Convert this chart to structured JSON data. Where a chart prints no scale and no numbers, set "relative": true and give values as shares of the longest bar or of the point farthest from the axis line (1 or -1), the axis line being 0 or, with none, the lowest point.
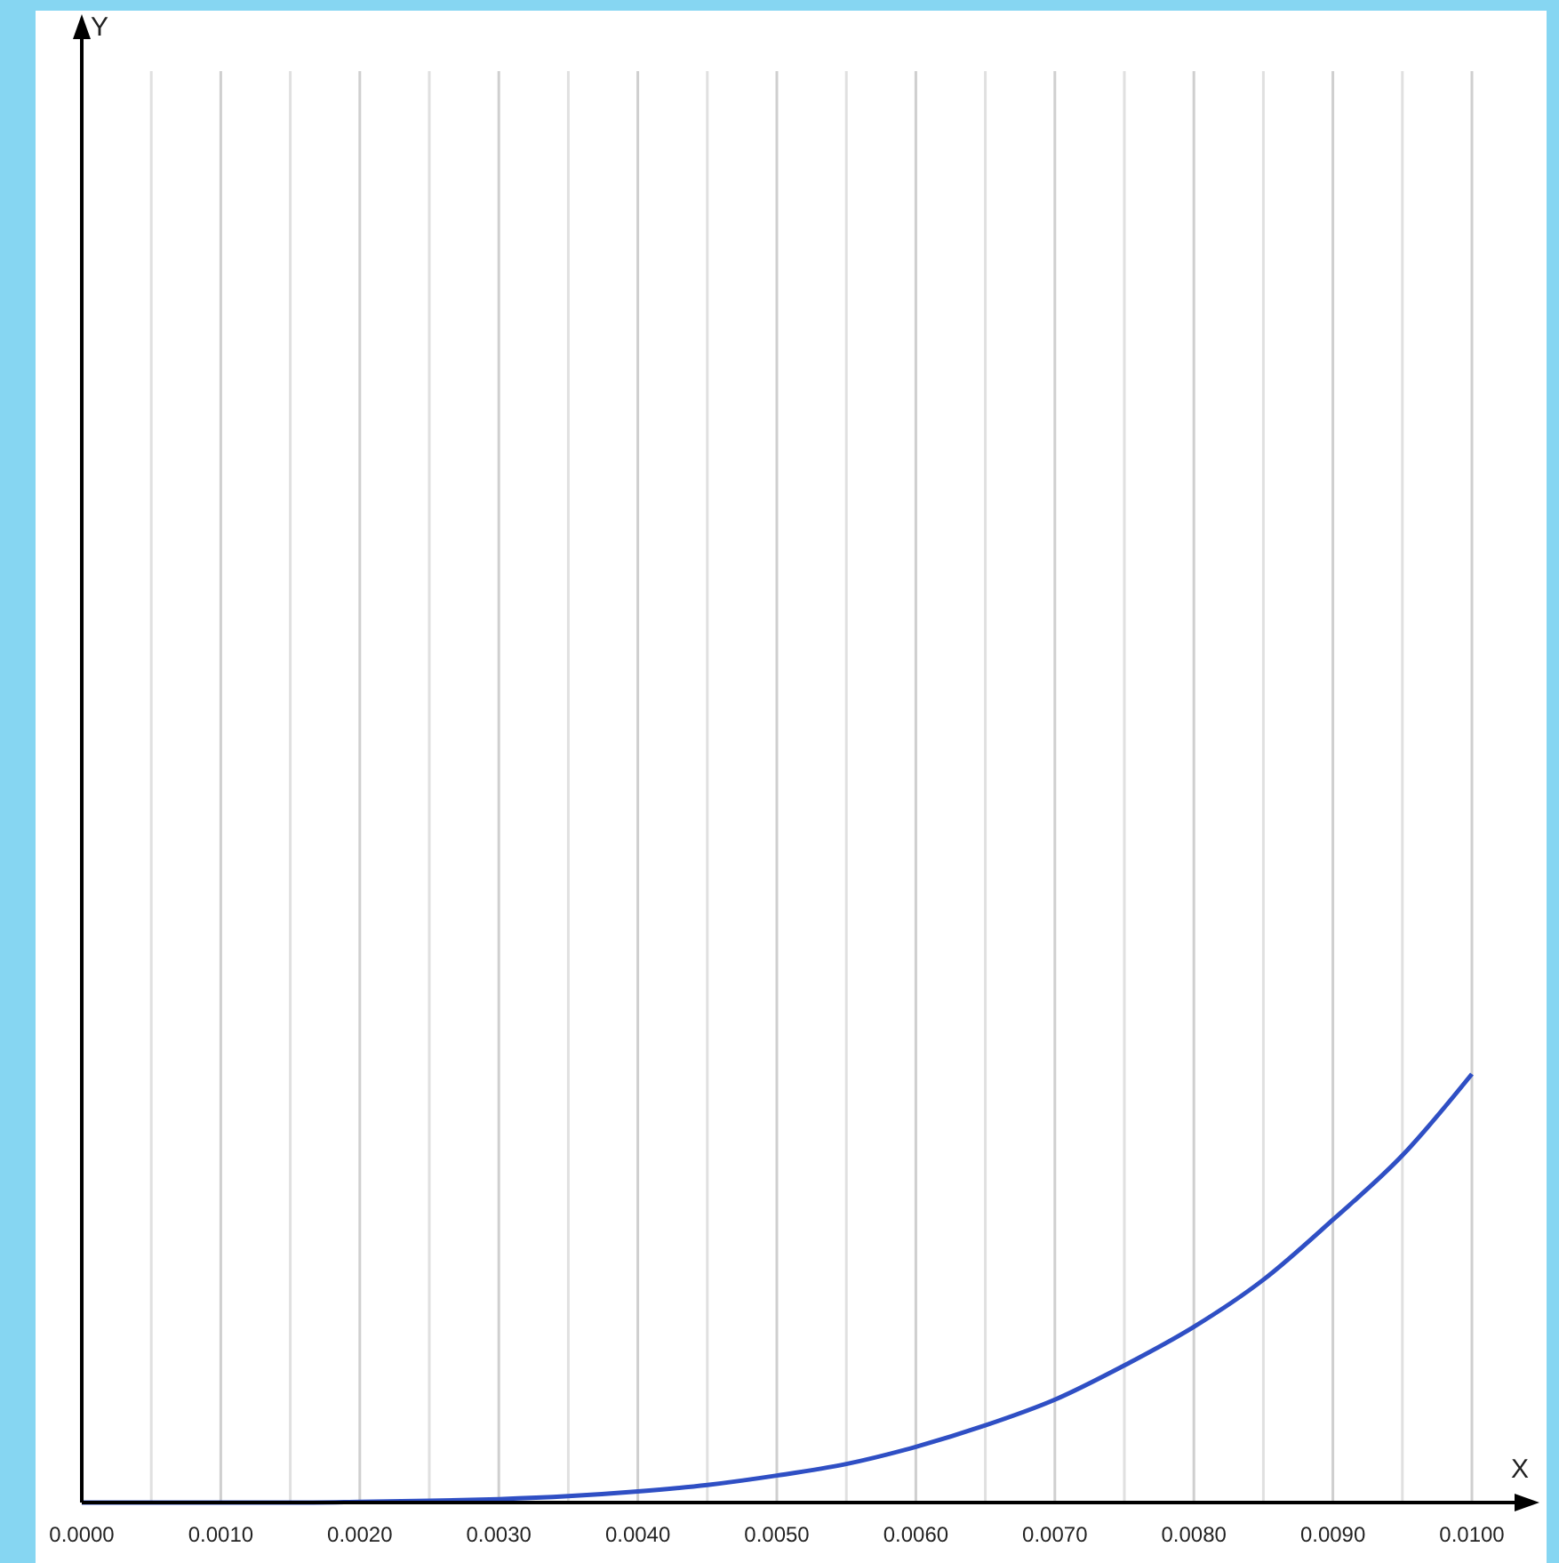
{
  "chart_data": {
    "type": "line",
    "xlabel": "X",
    "annotations": [
      "Y"
    ],
    "relative": true,
    "grid": "x",
    "xlim": [
      0,
      0.01
    ],
    "xticks": [
      {
        "value": 0,
        "label": "0.0000"
      },
      {
        "value": 0.0005,
        "label": null
      },
      {
        "value": 0.001,
        "label": "0.0010"
      },
      {
        "value": 0.0015,
        "label": null
      },
      {
        "value": 0.002,
        "label": "0.0020"
      },
      {
        "value": 0.0025,
        "label": null
      },
      {
        "value": 0.003,
        "label": "0.0030"
      },
      {
        "value": 0.0035,
        "label": null
      },
      {
        "value": 0.004,
        "label": "0.0040"
      },
      {
        "value": 0.0045,
        "label": null
      },
      {
        "value": 0.005,
        "label": "0.0050"
      },
      {
        "value": 0.0055,
        "label": null
      },
      {
        "value": 0.006,
        "label": "0.0060"
      },
      {
        "value": 0.0065,
        "label": null
      },
      {
        "value": 0.007,
        "label": "0.0070"
      },
      {
        "value": 0.0075,
        "label": null
      },
      {
        "value": 0.008,
        "label": "0.0080"
      },
      {
        "value": 0.0085,
        "label": null
      },
      {
        "value": 0.009,
        "label": "0.0090"
      },
      {
        "value": 0.0095,
        "label": null
      },
      {
        "value": 0.01,
        "label": "0.0100"
      }
    ],
    "x": [
      0,
      0.0005,
      0.001,
      0.0015,
      0.002,
      0.0025,
      0.003,
      0.0035,
      0.004,
      0.0045,
      0.005,
      0.0055,
      0.006,
      0.0065,
      0.007,
      0.0075,
      0.008,
      0.0085,
      0.009,
      0.0095,
      0.01
    ],
    "series": [
      {
        "color": "#2f4fc4",
        "values": [
          0,
          0,
          0,
          0,
          0.0016,
          0.004,
          0.008,
          0.015,
          0.026,
          0.041,
          0.063,
          0.09,
          0.13,
          0.18,
          0.24,
          0.32,
          0.41,
          0.52,
          0.66,
          0.81,
          1
        ]
      }
    ]
  }
}
